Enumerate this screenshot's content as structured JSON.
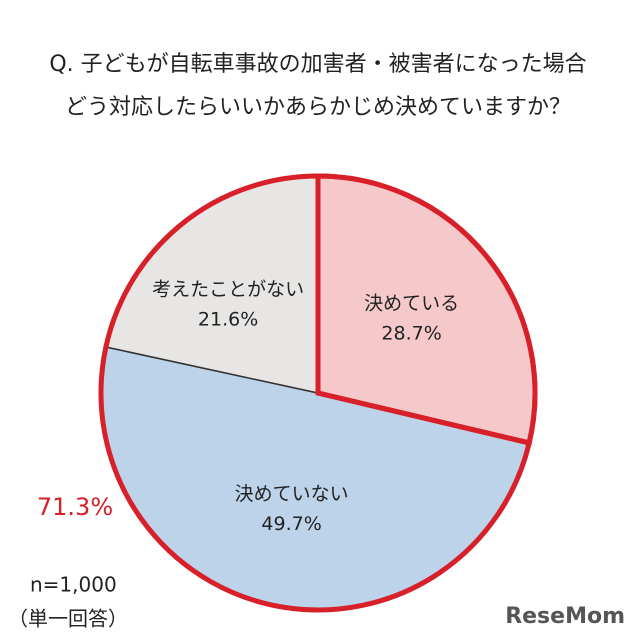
{
  "chart_data": {
    "type": "pie",
    "title": [
      "Q. 子どもが自転車事故の加害者・被害者になった場合",
      "どう対応したらいいかあらかじめ決めていますか？"
    ],
    "categories": [
      "決めている",
      "決めていない",
      "考えたことがない"
    ],
    "values": [
      28.7,
      49.7,
      21.6
    ],
    "value_labels": [
      "28.7%",
      "49.7%",
      "21.6%"
    ],
    "colors": [
      "#f5c8ca",
      "#bdd3e9",
      "#e8e6e4"
    ],
    "highlight_color": "#d7202a",
    "group_total": {
      "value": 71.3,
      "label": "71.3%"
    },
    "sample_note": [
      "n=1,000",
      "（単一回答）"
    ],
    "watermark": "ReseMom"
  }
}
